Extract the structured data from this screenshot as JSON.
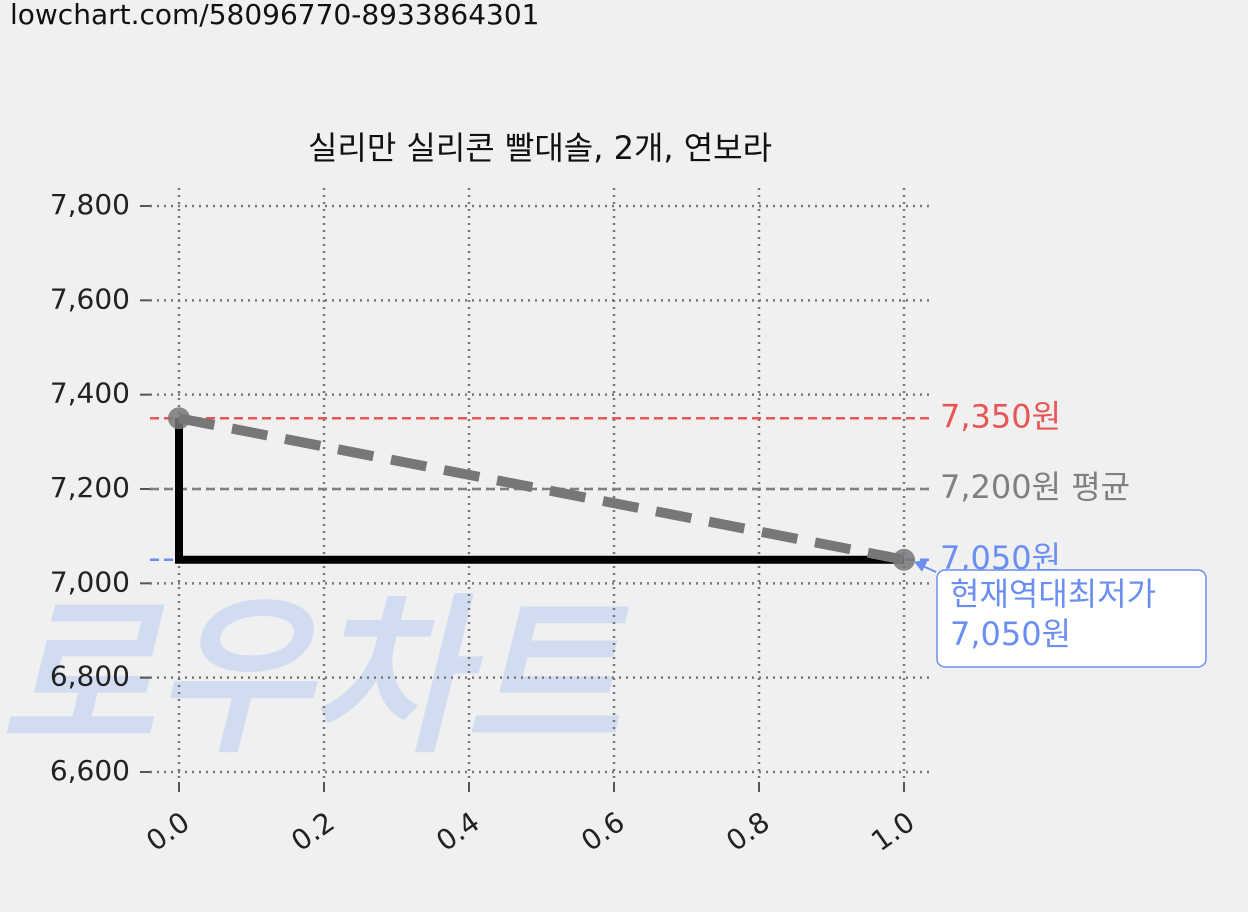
{
  "url": "lowchart.com/58096770-8933864301",
  "chart_data": {
    "type": "line",
    "title": "실리만 실리콘 빨대솔, 2개, 연보라",
    "watermark": "로우차트",
    "xlim": [
      0,
      1
    ],
    "ylim": [
      6600,
      7800
    ],
    "xticks": [
      {
        "value": 0,
        "label": "0.0"
      },
      {
        "value": 0.2,
        "label": "0.2"
      },
      {
        "value": 0.4,
        "label": "0.4"
      },
      {
        "value": 0.6,
        "label": "0.6"
      },
      {
        "value": 0.8,
        "label": "0.8"
      },
      {
        "value": 1,
        "label": "1.0"
      }
    ],
    "yticks": [
      {
        "value": 6600,
        "label": "6,600"
      },
      {
        "value": 6800,
        "label": "6,800"
      },
      {
        "value": 7000,
        "label": "7,000"
      },
      {
        "value": 7200,
        "label": "7,200"
      },
      {
        "value": 7400,
        "label": "7,400"
      },
      {
        "value": 7600,
        "label": "7,600"
      },
      {
        "value": 7800,
        "label": "7,800"
      }
    ],
    "grid": true,
    "series": [
      {
        "x": [
          0,
          0,
          1
        ],
        "values": [
          7350,
          7050,
          7050
        ],
        "color": "#000000",
        "style": "solid",
        "markers": false
      },
      {
        "x": [
          0,
          1
        ],
        "values": [
          7350,
          7050
        ],
        "color": "#777777",
        "style": "dashed",
        "markers": true
      }
    ],
    "ref_lines": [
      {
        "value": 7350,
        "label": "7,350원",
        "color": "#e85555"
      },
      {
        "value": 7200,
        "label": "7,200원 평균",
        "color": "#808080"
      },
      {
        "value": 7050,
        "label": "7,050원",
        "color": "#6a8ff0"
      }
    ],
    "annotation": {
      "text": [
        "현재역대최저가",
        "7,050원"
      ],
      "x": 1,
      "y": 7050,
      "color": "#6a8ff0"
    }
  }
}
